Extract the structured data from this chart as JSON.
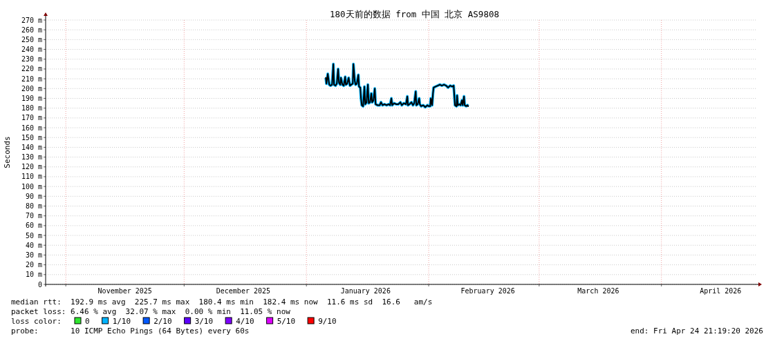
{
  "chart_data": {
    "type": "line",
    "title": "180天前的数据 from 中国 北京 AS9808",
    "ylabel": "Seconds",
    "xlim": [
      "2025-10-26T21:19",
      "2026-04-24T21:19"
    ],
    "xticks": [
      {
        "value": "2025-11-01",
        "label": null
      },
      {
        "value": "2025-11-16",
        "label": "November 2025"
      },
      {
        "value": "2025-12-01",
        "label": null
      },
      {
        "value": "2025-12-16",
        "label": "December 2025"
      },
      {
        "value": "2026-01-01",
        "label": null
      },
      {
        "value": "2026-01-16",
        "label": "January 2026"
      },
      {
        "value": "2026-02-01",
        "label": null
      },
      {
        "value": "2026-02-16",
        "label": "February 2026"
      },
      {
        "value": "2026-03-01",
        "label": null
      },
      {
        "value": "2026-03-16",
        "label": "March 2026"
      },
      {
        "value": "2026-04-01",
        "label": null
      },
      {
        "value": "2026-04-16",
        "label": "April 2026"
      }
    ],
    "ylim": [
      0,
      270
    ],
    "yticks": [
      {
        "value": 0,
        "label": "0"
      },
      {
        "value": 10,
        "label": "10 m"
      },
      {
        "value": 20,
        "label": "20 m"
      },
      {
        "value": 30,
        "label": "30 m"
      },
      {
        "value": 40,
        "label": "40 m"
      },
      {
        "value": 50,
        "label": "50 m"
      },
      {
        "value": 60,
        "label": "60 m"
      },
      {
        "value": 70,
        "label": "70 m"
      },
      {
        "value": 80,
        "label": "80 m"
      },
      {
        "value": 90,
        "label": "90 m"
      },
      {
        "value": 100,
        "label": "100 m"
      },
      {
        "value": 110,
        "label": "110 m"
      },
      {
        "value": 120,
        "label": "120 m"
      },
      {
        "value": 130,
        "label": "130 m"
      },
      {
        "value": 140,
        "label": "140 m"
      },
      {
        "value": 150,
        "label": "150 m"
      },
      {
        "value": 160,
        "label": "160 m"
      },
      {
        "value": 170,
        "label": "170 m"
      },
      {
        "value": 180,
        "label": "180 m"
      },
      {
        "value": 190,
        "label": "190 m"
      },
      {
        "value": 200,
        "label": "200 m"
      },
      {
        "value": 210,
        "label": "210 m"
      },
      {
        "value": 220,
        "label": "220 m"
      },
      {
        "value": 230,
        "label": "230 m"
      },
      {
        "value": 240,
        "label": "240 m"
      },
      {
        "value": 250,
        "label": "250 m"
      },
      {
        "value": 260,
        "label": "260 m"
      },
      {
        "value": 270,
        "label": "270 m"
      }
    ],
    "x": [
      "2026-01-05T22:00",
      "2026-01-06T02:00",
      "2026-01-06T10:00",
      "2026-01-06T19:00",
      "2026-01-07T03:00",
      "2026-01-07T12:00",
      "2026-01-07T20:00",
      "2026-01-08T00:00",
      "2026-01-08T09:00",
      "2026-01-08T17:00",
      "2026-01-09T01:00",
      "2026-01-09T06:00",
      "2026-01-09T14:00",
      "2026-01-09T18:00",
      "2026-01-10T03:00",
      "2026-01-10T11:00",
      "2026-01-10T20:00",
      "2026-01-11T00:00",
      "2026-01-11T08:00",
      "2026-01-11T17:00",
      "2026-01-12T01:00",
      "2026-01-12T09:00",
      "2026-01-12T18:00",
      "2026-01-12T22:00",
      "2026-01-13T06:00",
      "2026-01-13T11:00",
      "2026-01-13T19:00",
      "2026-01-14T04:00",
      "2026-01-14T08:00",
      "2026-01-14T16:00",
      "2026-01-14T20:00",
      "2026-01-15T01:00",
      "2026-01-15T09:00",
      "2026-01-15T17:00",
      "2026-01-15T22:00",
      "2026-01-16T06:00",
      "2026-01-16T14:00",
      "2026-01-16T19:00",
      "2026-01-17T03:00",
      "2026-01-17T11:00",
      "2026-01-17T16:00",
      "2026-01-18T00:00",
      "2026-01-18T08:00",
      "2026-01-18T13:00",
      "2026-01-19T01:00",
      "2026-01-19T14:00",
      "2026-01-19T22:00",
      "2026-01-20T07:00",
      "2026-01-20T19:00",
      "2026-01-21T08:00",
      "2026-01-21T20:00",
      "2026-01-22T05:00",
      "2026-01-22T13:00",
      "2026-01-22T18:00",
      "2026-01-23T06:00",
      "2026-01-23T19:00",
      "2026-01-24T07:00",
      "2026-01-24T20:00",
      "2026-01-25T04:00",
      "2026-01-25T17:00",
      "2026-01-26T06:00",
      "2026-01-26T14:00",
      "2026-01-26T18:00",
      "2026-01-27T03:00",
      "2026-01-27T15:00",
      "2026-01-28T00:00",
      "2026-01-28T08:00",
      "2026-01-28T17:00",
      "2026-01-28T21:00",
      "2026-01-29T05:00",
      "2026-01-29T14:00",
      "2026-01-29T18:00",
      "2026-01-30T02:00",
      "2026-01-30T15:00",
      "2026-01-31T03:00",
      "2026-01-31T16:00",
      "2026-02-01T00:00",
      "2026-02-01T09:00",
      "2026-02-01T13:00",
      "2026-02-01T21:00",
      "2026-02-02T02:00",
      "2026-02-02T06:00",
      "2026-02-02T18:00",
      "2026-02-03T07:00",
      "2026-02-03T20:00",
      "2026-02-04T08:00",
      "2026-02-04T21:00",
      "2026-02-05T10:00",
      "2026-02-05T22:00",
      "2026-02-06T11:00",
      "2026-02-06T23:00",
      "2026-02-07T08:00",
      "2026-02-07T12:00",
      "2026-02-07T16:00",
      "2026-02-08T01:00",
      "2026-02-08T05:00",
      "2026-02-08T09:00",
      "2026-02-08T18:00",
      "2026-02-09T02:00",
      "2026-02-09T10:00",
      "2026-02-09T15:00",
      "2026-02-09T23:00",
      "2026-02-10T03:00",
      "2026-02-10T12:00",
      "2026-02-10T20:00",
      "2026-02-11T00:00"
    ],
    "series": [
      {
        "color": "#000000",
        "values": [
          211,
          205,
          215,
          204,
          203,
          204,
          225,
          204,
          203,
          205,
          220,
          206,
          204,
          211,
          204,
          203,
          212,
          204,
          205,
          211,
          203,
          204,
          205,
          225,
          208,
          204,
          205,
          214,
          202,
          201,
          190,
          183,
          182,
          202,
          184,
          186,
          204,
          185,
          186,
          195,
          186,
          188,
          200,
          184,
          183,
          183,
          186,
          183,
          184,
          183,
          184,
          183,
          190,
          183,
          185,
          184,
          184,
          186,
          183,
          185,
          184,
          192,
          183,
          184,
          186,
          183,
          185,
          197,
          183,
          184,
          190,
          184,
          182,
          183,
          181,
          183,
          182,
          182,
          190,
          183,
          195,
          201,
          202,
          203,
          204,
          203,
          204,
          203,
          201,
          203,
          202,
          203,
          193,
          183,
          182,
          193,
          183,
          184,
          183,
          188,
          183,
          192,
          183,
          182,
          183,
          182
        ]
      },
      {
        "name": "0",
        "color": "#2ee62e",
        "values": [
          null,
          null,
          null,
          null,
          null,
          null,
          null,
          null,
          null,
          null,
          null,
          null,
          null,
          null,
          null,
          null,
          null,
          null,
          null,
          null,
          null,
          null,
          null,
          null,
          null,
          null,
          null,
          null,
          null,
          null,
          null,
          null,
          null,
          null,
          null,
          null,
          null,
          null,
          null,
          null,
          null,
          null,
          null,
          null,
          null,
          null,
          null,
          null,
          null,
          null,
          null,
          null,
          null,
          null,
          null,
          null,
          null,
          null,
          null,
          null,
          null,
          null,
          null,
          null,
          null,
          null,
          null,
          null,
          null,
          null,
          null,
          null,
          null,
          null,
          null,
          null,
          null,
          null,
          null,
          null,
          null,
          null,
          null,
          null,
          null,
          null,
          null,
          null,
          null,
          null,
          null,
          null,
          null,
          null,
          null,
          null,
          null,
          null,
          null,
          null,
          null,
          null,
          null,
          null,
          null,
          null
        ]
      },
      {
        "name": "1/10",
        "color": "#00b4ff",
        "values": [
          211,
          205,
          215,
          204,
          203,
          204,
          225,
          204,
          203,
          205,
          220,
          206,
          204,
          211,
          204,
          203,
          212,
          204,
          205,
          211,
          203,
          204,
          205,
          225,
          208,
          204,
          205,
          214,
          202,
          201,
          190,
          183,
          182,
          202,
          184,
          186,
          204,
          185,
          186,
          195,
          186,
          188,
          200,
          184,
          183,
          183,
          186,
          183,
          184,
          183,
          184,
          183,
          190,
          183,
          185,
          184,
          184,
          186,
          183,
          185,
          184,
          192,
          183,
          184,
          186,
          183,
          185,
          197,
          183,
          184,
          190,
          184,
          182,
          183,
          181,
          183,
          182,
          182,
          190,
          183,
          195,
          201,
          202,
          203,
          204,
          203,
          204,
          203,
          201,
          203,
          202,
          203,
          193,
          183,
          182,
          193,
          183,
          184,
          183,
          188,
          183,
          192,
          183,
          182,
          183,
          182
        ]
      },
      {
        "name": "2/10",
        "color": "#0059ff",
        "values": [
          null,
          null,
          null,
          null,
          null,
          null,
          null,
          null,
          null,
          null,
          null,
          null,
          null,
          null,
          null,
          null,
          null,
          null,
          null,
          null,
          null,
          null,
          null,
          null,
          null,
          null,
          null,
          null,
          null,
          null,
          null,
          null,
          null,
          null,
          null,
          null,
          null,
          null,
          null,
          null,
          null,
          null,
          null,
          null,
          null,
          null,
          null,
          null,
          null,
          null,
          null,
          null,
          null,
          null,
          null,
          null,
          null,
          null,
          null,
          null,
          null,
          null,
          null,
          null,
          null,
          null,
          null,
          null,
          null,
          null,
          null,
          null,
          null,
          null,
          null,
          null,
          null,
          null,
          null,
          null,
          null,
          null,
          null,
          null,
          null,
          null,
          null,
          null,
          null,
          null,
          null,
          null,
          null,
          null,
          null,
          null,
          null,
          null,
          null,
          null,
          null,
          null,
          null,
          null,
          null,
          null
        ]
      },
      {
        "name": "3/10",
        "color": "#5e00ff",
        "values": [
          null,
          null,
          null,
          null,
          null,
          null,
          null,
          null,
          null,
          null,
          null,
          null,
          null,
          null,
          null,
          null,
          null,
          null,
          null,
          null,
          null,
          null,
          null,
          null,
          null,
          null,
          null,
          null,
          null,
          null,
          null,
          null,
          null,
          null,
          null,
          null,
          null,
          null,
          null,
          null,
          null,
          null,
          null,
          null,
          null,
          null,
          null,
          null,
          null,
          null,
          null,
          null,
          null,
          null,
          null,
          null,
          null,
          null,
          null,
          null,
          null,
          null,
          null,
          null,
          null,
          null,
          null,
          null,
          null,
          null,
          null,
          null,
          null,
          null,
          null,
          null,
          null,
          null,
          null,
          null,
          null,
          null,
          null,
          null,
          null,
          null,
          null,
          null,
          null,
          null,
          null,
          null,
          null,
          null,
          null,
          null,
          null,
          null,
          null,
          null,
          null,
          null,
          null,
          null,
          null,
          null
        ]
      },
      {
        "name": "4/10",
        "color": "#7e00ff",
        "values": [
          null,
          null,
          null,
          null,
          null,
          null,
          null,
          null,
          null,
          null,
          null,
          null,
          null,
          null,
          null,
          null,
          null,
          null,
          null,
          null,
          null,
          null,
          null,
          null,
          null,
          null,
          null,
          null,
          null,
          null,
          null,
          null,
          null,
          null,
          null,
          null,
          null,
          null,
          null,
          null,
          null,
          null,
          null,
          null,
          null,
          null,
          null,
          null,
          null,
          null,
          null,
          null,
          null,
          null,
          null,
          null,
          null,
          null,
          null,
          null,
          null,
          null,
          null,
          null,
          null,
          null,
          null,
          null,
          null,
          null,
          null,
          null,
          null,
          null,
          null,
          null,
          null,
          null,
          null,
          null,
          null,
          null,
          null,
          null,
          null,
          null,
          null,
          null,
          null,
          null,
          null,
          null,
          null,
          null,
          null,
          null,
          null,
          null,
          null,
          null,
          null,
          null,
          null,
          null,
          null,
          null
        ]
      },
      {
        "name": "5/10",
        "color": "#dd00ff",
        "values": [
          null,
          null,
          null,
          null,
          null,
          null,
          null,
          null,
          null,
          null,
          null,
          null,
          null,
          null,
          null,
          null,
          null,
          null,
          null,
          null,
          null,
          null,
          null,
          null,
          null,
          null,
          null,
          null,
          null,
          null,
          null,
          null,
          null,
          null,
          null,
          null,
          null,
          null,
          null,
          null,
          null,
          null,
          null,
          null,
          null,
          null,
          null,
          null,
          null,
          null,
          null,
          null,
          null,
          null,
          null,
          null,
          null,
          null,
          null,
          null,
          null,
          null,
          null,
          null,
          null,
          null,
          null,
          null,
          null,
          null,
          null,
          null,
          null,
          null,
          null,
          null,
          null,
          null,
          null,
          null,
          null,
          null,
          null,
          null,
          null,
          null,
          null,
          null,
          null,
          null,
          null,
          null,
          null,
          null,
          null,
          null,
          null,
          null,
          null,
          null,
          null,
          null,
          null,
          null,
          null,
          null
        ]
      },
      {
        "name": "9/10",
        "color": "#ff0000",
        "values": [
          null,
          null,
          null,
          null,
          null,
          null,
          null,
          null,
          null,
          null,
          null,
          null,
          null,
          null,
          null,
          null,
          null,
          null,
          null,
          null,
          null,
          null,
          null,
          null,
          null,
          null,
          null,
          null,
          null,
          null,
          null,
          null,
          null,
          null,
          null,
          null,
          null,
          null,
          null,
          null,
          null,
          null,
          null,
          null,
          null,
          null,
          null,
          null,
          null,
          null,
          null,
          null,
          null,
          null,
          null,
          null,
          null,
          null,
          null,
          null,
          null,
          null,
          null,
          null,
          null,
          null,
          null,
          null,
          null,
          null,
          null,
          null,
          null,
          null,
          null,
          null,
          null,
          null,
          null,
          null,
          null,
          null,
          null,
          null,
          null,
          null,
          null,
          null,
          null,
          null,
          null,
          null,
          null,
          null,
          null,
          null,
          null,
          null,
          null,
          null,
          null,
          null,
          null,
          null,
          null,
          null
        ]
      }
    ],
    "legend": "bottom",
    "legend_title": "loss color:",
    "grid": true,
    "marker": "none",
    "line_style": "solid",
    "annotations": [
      "median rtt:  192.9 ms avg  225.7 ms max  180.4 ms min  182.4 ms now  11.6 ms sd  16.6   am/s",
      "packet loss: 6.46 % avg  32.07 % max  0.00 % min  11.05 % now",
      "probe:       10 ICMP Echo Pings (64 Bytes) every 60s",
      "end: Fri Apr 24 21:19:20 2026"
    ]
  }
}
